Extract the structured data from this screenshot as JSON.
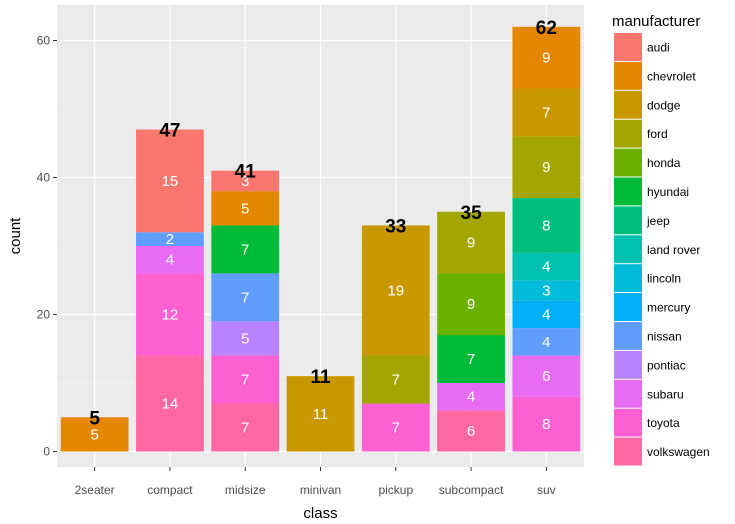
{
  "chart_data": {
    "type": "bar",
    "stacked": true,
    "xlabel": "class",
    "ylabel": "count",
    "ylim": [
      0,
      65
    ],
    "yticks": [
      0,
      20,
      40,
      60
    ],
    "grid": true,
    "legend_title": "manufacturer",
    "legend_position": "right",
    "categories": [
      "2seater",
      "compact",
      "midsize",
      "minivan",
      "pickup",
      "subcompact",
      "suv"
    ],
    "totals": [
      5,
      47,
      41,
      11,
      33,
      35,
      62
    ],
    "series": [
      {
        "name": "audi",
        "color": "#F8766D",
        "values": [
          0,
          15,
          3,
          0,
          0,
          0,
          0
        ]
      },
      {
        "name": "chevrolet",
        "color": "#E58700",
        "values": [
          5,
          0,
          5,
          0,
          0,
          0,
          9
        ]
      },
      {
        "name": "dodge",
        "color": "#C99800",
        "values": [
          0,
          0,
          0,
          11,
          19,
          0,
          7
        ]
      },
      {
        "name": "ford",
        "color": "#A3A500",
        "values": [
          0,
          0,
          0,
          0,
          7,
          9,
          9
        ]
      },
      {
        "name": "honda",
        "color": "#6BB100",
        "values": [
          0,
          0,
          0,
          0,
          0,
          9,
          0
        ]
      },
      {
        "name": "hyundai",
        "color": "#00BA38",
        "values": [
          0,
          0,
          7,
          0,
          0,
          7,
          0
        ]
      },
      {
        "name": "jeep",
        "color": "#00BF7D",
        "values": [
          0,
          0,
          0,
          0,
          0,
          0,
          8
        ]
      },
      {
        "name": "land rover",
        "color": "#00C0AF",
        "values": [
          0,
          0,
          0,
          0,
          0,
          0,
          4
        ]
      },
      {
        "name": "lincoln",
        "color": "#00BCD8",
        "values": [
          0,
          0,
          0,
          0,
          0,
          0,
          3
        ]
      },
      {
        "name": "mercury",
        "color": "#00B0F6",
        "values": [
          0,
          0,
          0,
          0,
          0,
          0,
          4
        ]
      },
      {
        "name": "nissan",
        "color": "#619CFF",
        "values": [
          0,
          2,
          7,
          0,
          0,
          0,
          4
        ]
      },
      {
        "name": "pontiac",
        "color": "#B983FF",
        "values": [
          0,
          0,
          5,
          0,
          0,
          0,
          0
        ]
      },
      {
        "name": "subaru",
        "color": "#E76BF3",
        "values": [
          0,
          4,
          0,
          0,
          0,
          4,
          6
        ]
      },
      {
        "name": "toyota",
        "color": "#FD61D1",
        "values": [
          0,
          12,
          7,
          0,
          7,
          0,
          8
        ]
      },
      {
        "name": "volkswagen",
        "color": "#FF67A4",
        "values": [
          0,
          14,
          7,
          0,
          0,
          6,
          0
        ]
      }
    ]
  }
}
